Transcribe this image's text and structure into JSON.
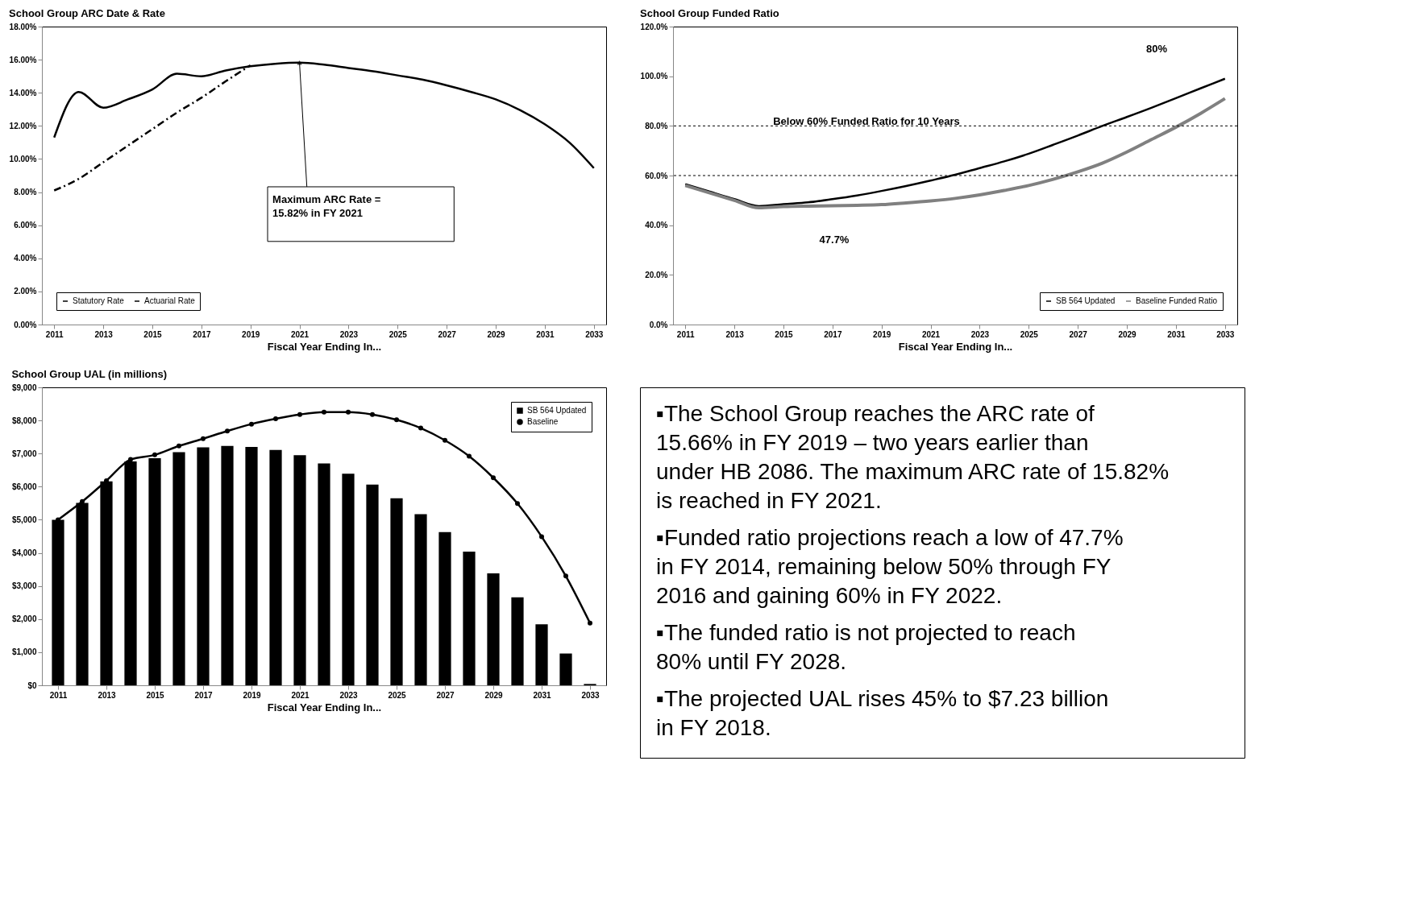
{
  "chart_data": [
    {
      "type": "line",
      "title": "School Group ARC Date & Rate",
      "xlabel": "Fiscal Year Ending In...",
      "categories": [
        "2011",
        null,
        "2013",
        null,
        "2015",
        null,
        "2017",
        null,
        "2019",
        null,
        "2021",
        null,
        "2023",
        null,
        "2025",
        null,
        "2027",
        null,
        "2029",
        null,
        "2031",
        null,
        "2033"
      ],
      "series": [
        {
          "name": "Statutory Rate",
          "color": "#000000",
          "line_style": "dashed",
          "values": [
            8.1,
            8.8,
            9.8,
            10.8,
            11.8,
            12.8,
            13.7,
            14.7,
            15.66,
            null,
            null,
            null,
            null,
            null,
            null,
            null,
            null,
            null,
            null,
            null,
            null,
            null,
            null
          ]
        },
        {
          "name": "Actuarial Rate",
          "color": "#000000",
          "line_style": "solid",
          "values": [
            11.3,
            14.05,
            13.1,
            13.6,
            14.2,
            15.15,
            15.0,
            15.35,
            15.6,
            15.75,
            15.82,
            15.7,
            15.5,
            15.3,
            15.05,
            14.8,
            14.45,
            14.05,
            13.6,
            12.95,
            12.1,
            11.0,
            9.45
          ]
        }
      ],
      "ylim": [
        0,
        18
      ],
      "yticks": [
        {
          "value": 0,
          "label": "0.00%"
        },
        {
          "value": 2,
          "label": "2.00%"
        },
        {
          "value": 4,
          "label": "4.00%"
        },
        {
          "value": 6,
          "label": "6.00%"
        },
        {
          "value": 8,
          "label": "8.00%"
        },
        {
          "value": 10,
          "label": "10.00%"
        },
        {
          "value": 12,
          "label": "12.00%"
        },
        {
          "value": 14,
          "label": "14.00%"
        },
        {
          "value": 16,
          "label": "16.00%"
        },
        {
          "value": 18,
          "label": "18.00%"
        }
      ],
      "annotations": [
        {
          "text": "Maximum ARC Rate = 15.82% in FY 2021",
          "x": "2021",
          "y": 15.82
        }
      ],
      "legend": "bottom left"
    },
    {
      "type": "line",
      "title": "School Group Funded Ratio",
      "xlabel": "Fiscal Year Ending In...",
      "categories": [
        "2011",
        null,
        "2013",
        null,
        "2015",
        null,
        "2017",
        null,
        "2019",
        null,
        "2021",
        null,
        "2023",
        null,
        "2025",
        null,
        "2027",
        null,
        "2029",
        null,
        "2031",
        null,
        "2033"
      ],
      "series": [
        {
          "name": "SB 564 Updated",
          "color": "#000000",
          "values": [
            56.5,
            53.5,
            50.5,
            47.7,
            48.5,
            49.2,
            50.5,
            52.0,
            53.8,
            55.8,
            58.0,
            60.3,
            63.0,
            65.7,
            68.8,
            72.4,
            76.1,
            80.0,
            83.6,
            87.3,
            91.2,
            95.1,
            99.0
          ]
        },
        {
          "name": "Baseline Funded Ratio",
          "color": "#808080",
          "values": [
            56.0,
            53.0,
            50.0,
            47.0,
            47.5,
            47.7,
            47.8,
            48.0,
            48.3,
            49.0,
            49.8,
            50.8,
            52.2,
            54.0,
            56.0,
            58.5,
            61.5,
            65.0,
            69.5,
            74.5,
            79.5,
            85.0,
            91.0
          ]
        }
      ],
      "ylim": [
        0,
        120
      ],
      "yticks": [
        {
          "value": 0,
          "label": "0.0%"
        },
        {
          "value": 20,
          "label": "20.0%"
        },
        {
          "value": 40,
          "label": "40.0%"
        },
        {
          "value": 60,
          "label": "60.0%"
        },
        {
          "value": 80,
          "label": "80.0%"
        },
        {
          "value": 100,
          "label": "100.0%"
        },
        {
          "value": 120,
          "label": "120.0%"
        }
      ],
      "ref_lines": [
        {
          "axis": "y",
          "value": 80,
          "color": "#000000",
          "line_style": "dotted"
        },
        {
          "axis": "y",
          "value": 60,
          "color": "#000000",
          "line_style": "dotted"
        }
      ],
      "annotations": [
        "80%",
        "47.7%",
        "Below 60% Funded Ratio for 10 Years"
      ],
      "legend": "bottom right"
    },
    {
      "type": "bar",
      "title": "School Group UAL (in millions)",
      "xlabel": "Fiscal Year Ending In...",
      "categories": [
        "2011",
        null,
        "2013",
        null,
        "2015",
        null,
        "2017",
        null,
        "2019",
        null,
        "2021",
        null,
        "2023",
        null,
        "2025",
        null,
        "2027",
        null,
        "2029",
        null,
        "2031",
        null,
        "2033"
      ],
      "series": [
        {
          "name": "SB 564 Updated",
          "color": "#000000",
          "values": [
            5000,
            5510,
            6160,
            6760,
            6860,
            7040,
            7190,
            7230,
            7200,
            7110,
            6950,
            6700,
            6390,
            6060,
            5650,
            5170,
            4630,
            4040,
            3380,
            2660,
            1840,
            960,
            40
          ]
        },
        {
          "name": "Baseline",
          "type": "line",
          "color": "#000000",
          "marker": "circle",
          "values": [
            5000,
            5550,
            6180,
            6820,
            6960,
            7230,
            7450,
            7680,
            7890,
            8050,
            8180,
            8250,
            8250,
            8180,
            8020,
            7770,
            7400,
            6920,
            6270,
            5490,
            4490,
            3300,
            1880
          ]
        }
      ],
      "ylim": [
        0,
        9000
      ],
      "yticks": [
        {
          "value": 0,
          "label": "$0"
        },
        {
          "value": 1000,
          "label": "$1,000"
        },
        {
          "value": 2000,
          "label": "$2,000"
        },
        {
          "value": 3000,
          "label": "$3,000"
        },
        {
          "value": 4000,
          "label": "$4,000"
        },
        {
          "value": 5000,
          "label": "$5,000"
        },
        {
          "value": 6000,
          "label": "$6,000"
        },
        {
          "value": 7000,
          "label": "$7,000"
        },
        {
          "value": 8000,
          "label": "$8,000"
        },
        {
          "value": 9000,
          "label": "$9,000"
        }
      ],
      "legend": "top right"
    },
    {
      "type": "other",
      "annotations": [
        "▪The School Group reaches the ARC rate of 15.66% in FY 2019 – two years earlier than under HB 2086.  The maximum ARC rate of 15.82% is reached in FY 2021.",
        "▪Funded ratio projections reach a low of 47.7% in FY 2014, remaining below 50% through FY 2016 and gaining 60% in FY 2022.",
        "▪The funded ratio is not projected to reach 80% until FY 2028.",
        "▪The projected UAL rises 45% to $7.23 billion in FY 2018."
      ]
    }
  ]
}
